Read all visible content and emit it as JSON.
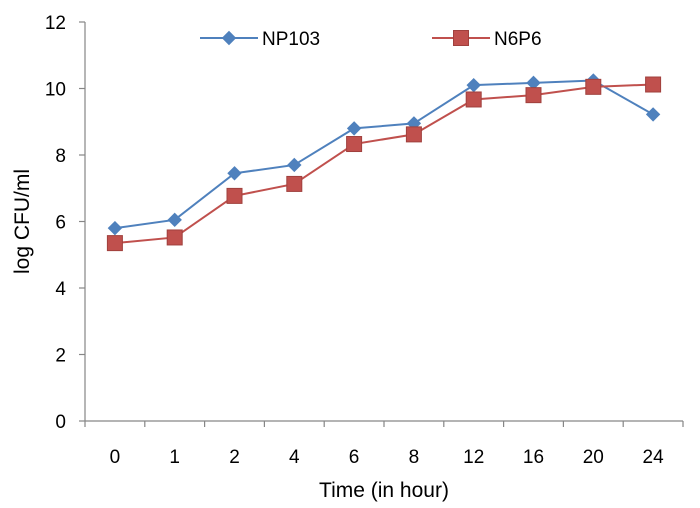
{
  "chart_data": {
    "type": "line",
    "title": "",
    "xlabel": "Time (in hour)",
    "ylabel": "log CFU/ml",
    "categories": [
      "0",
      "1",
      "2",
      "4",
      "6",
      "8",
      "12",
      "16",
      "20",
      "24"
    ],
    "ylim": [
      0,
      12
    ],
    "yticks": [
      "0",
      "2",
      "4",
      "6",
      "8",
      "10",
      "12"
    ],
    "grid": false,
    "legend_position": "top",
    "series": [
      {
        "name": "NP103",
        "color": "#4F81BD",
        "marker": "diamond",
        "values": [
          5.8,
          6.05,
          7.45,
          7.7,
          8.8,
          8.95,
          10.1,
          10.17,
          10.24,
          9.22
        ]
      },
      {
        "name": "N6P6",
        "color": "#C0504D",
        "marker": "square",
        "values": [
          5.35,
          5.52,
          6.77,
          7.13,
          8.33,
          8.62,
          9.67,
          9.8,
          10.05,
          10.12
        ]
      }
    ]
  }
}
